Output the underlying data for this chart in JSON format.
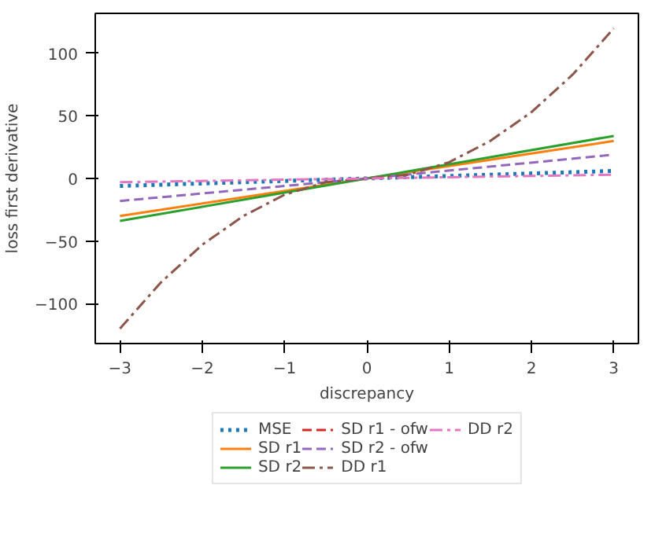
{
  "chart_data": {
    "type": "line",
    "xlabel": "discrepancy",
    "ylabel": "loss first derivative",
    "xlim": [
      -3.3,
      3.3
    ],
    "ylim": [
      -132,
      132
    ],
    "xticks": [
      {
        "value": -3,
        "label": "−3"
      },
      {
        "value": -2,
        "label": "−2"
      },
      {
        "value": -1,
        "label": "−1"
      },
      0,
      1,
      2,
      3
    ],
    "yticks": [
      {
        "value": -100,
        "label": "−100"
      },
      {
        "value": -50,
        "label": "−50"
      },
      0,
      50,
      100
    ],
    "grid": false,
    "legend": "bottom",
    "series": [
      {
        "name": "MSE",
        "color": "#1f77b4",
        "line_style": "dotted",
        "x": [
          -3,
          0,
          3
        ],
        "values": [
          -6,
          0,
          6
        ]
      },
      {
        "name": "SD r1",
        "color": "#ff7f0e",
        "line_style": "solid",
        "x": [
          -3,
          0,
          3
        ],
        "values": [
          -30,
          0,
          30
        ]
      },
      {
        "name": "SD r2",
        "color": "#2ca02c",
        "line_style": "solid",
        "x": [
          -3,
          0,
          3
        ],
        "values": [
          -34,
          0,
          34
        ]
      },
      {
        "name": "SD r1 - ofw",
        "color": "#d62728",
        "line_style": "dashed",
        "values": [
          null,
          null,
          null
        ]
      },
      {
        "name": "SD r2 - ofw",
        "color": "#9467bd",
        "line_style": "dashed",
        "x": [
          -3,
          0,
          3
        ],
        "values": [
          -18,
          0,
          19
        ]
      },
      {
        "name": "DD r1",
        "color": "#8c564b",
        "line_style": "dashdot",
        "x": [
          -3,
          -2.5,
          -2,
          -1.5,
          -1,
          -0.5,
          0,
          0.5,
          1,
          1.5,
          2,
          2.5,
          3
        ],
        "values": [
          -120,
          -83,
          -53,
          -30,
          -13,
          -3,
          0,
          3,
          13,
          30,
          53,
          83,
          120
        ]
      },
      {
        "name": "DD r2",
        "color": "#e377c2",
        "line_style": "dashdot",
        "x": [
          -3,
          0,
          3
        ],
        "values": [
          -3,
          0,
          3
        ]
      }
    ]
  }
}
